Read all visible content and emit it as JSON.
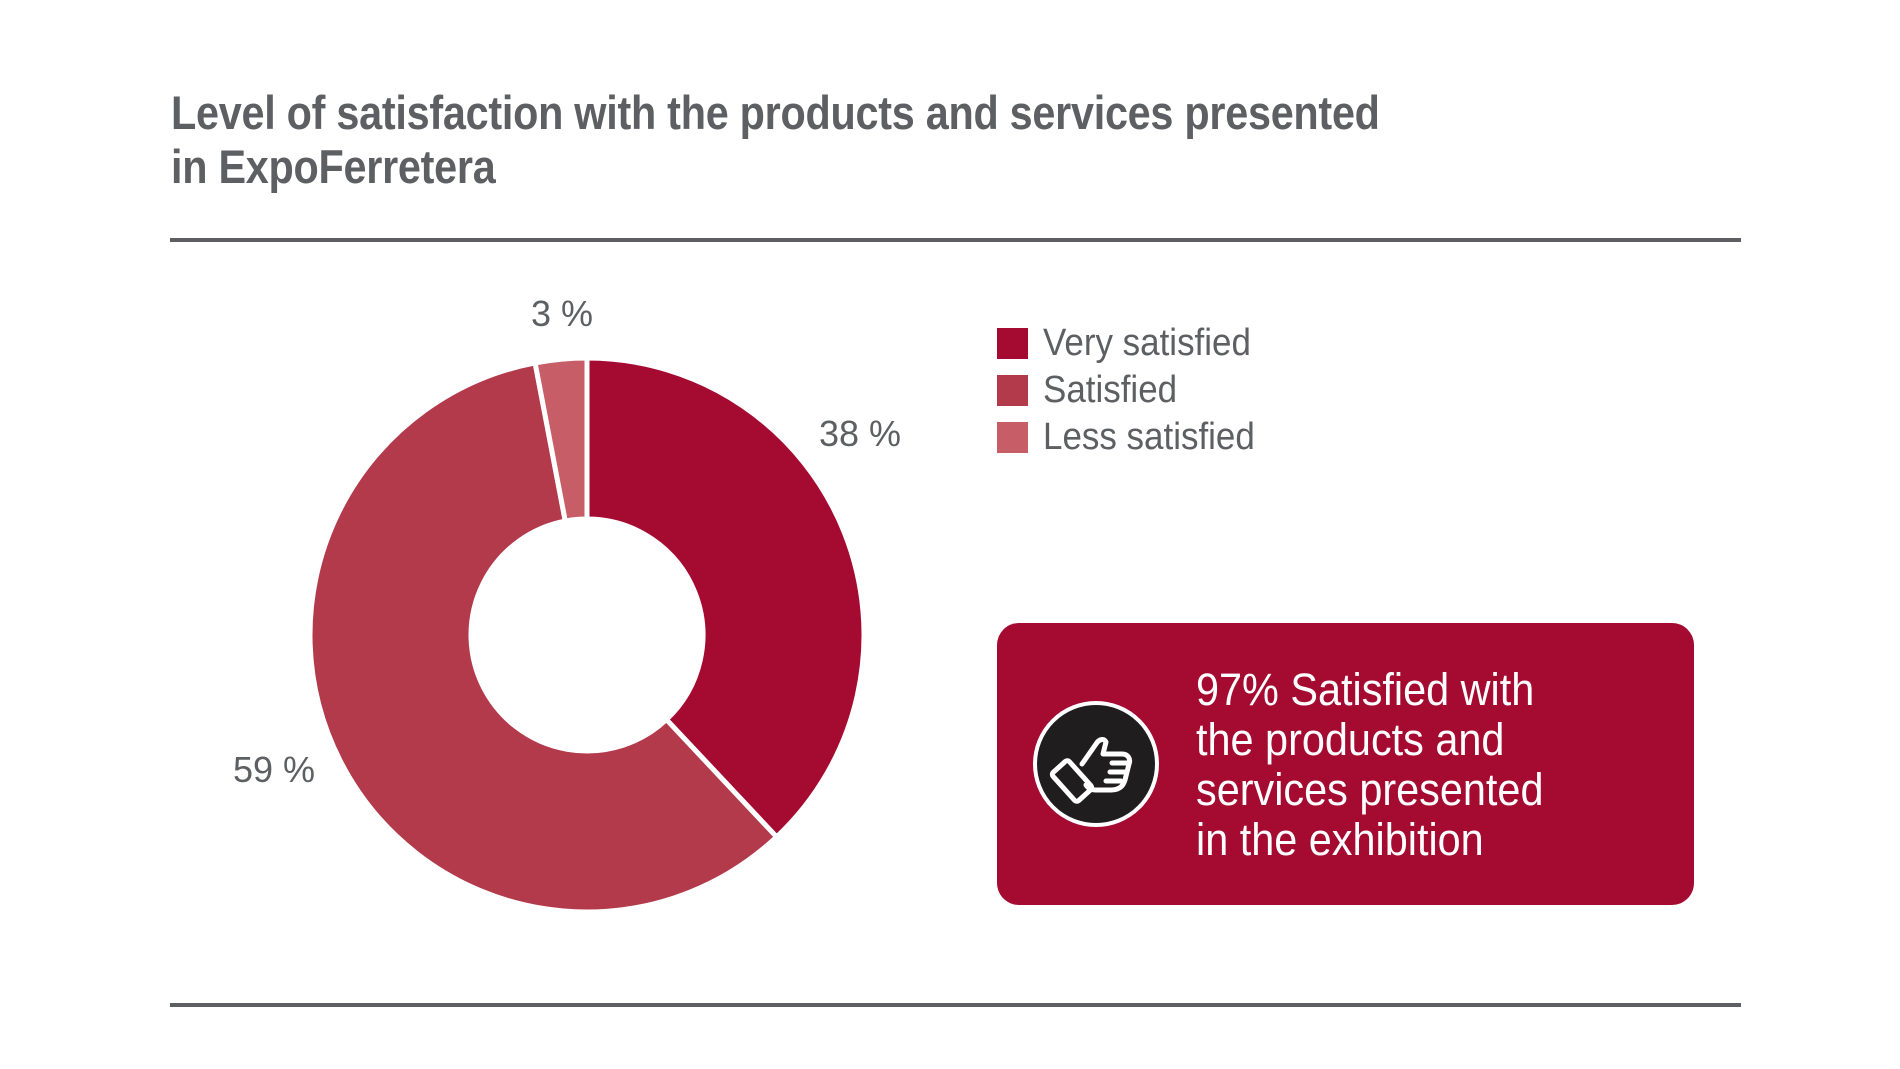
{
  "header": {
    "title_line1": "Level of satisfaction with the products and services presented",
    "title_line2": "in ExpoFerretera"
  },
  "chart_data": {
    "type": "pie",
    "variant": "donut",
    "title": "Level of satisfaction with the products and services presented in ExpoFerretera",
    "series": [
      {
        "name": "Very satisfied",
        "value": 38,
        "label": "38 %",
        "color": "#a50a30"
      },
      {
        "name": "Satisfied",
        "value": 59,
        "label": "59 %",
        "color": "#b33a4b"
      },
      {
        "name": "Less satisfied",
        "value": 3,
        "label": "3 %",
        "color": "#c75d67"
      }
    ],
    "legend_position": "right"
  },
  "legend": {
    "items": [
      {
        "label": "Very satisfied",
        "color": "#a50a30"
      },
      {
        "label": "Satisfied",
        "color": "#b33a4b"
      },
      {
        "label": "Less satisfied",
        "color": "#c75d67"
      }
    ]
  },
  "callout": {
    "icon": "thumbs-up-icon",
    "line1": "97% Satisfied with",
    "line2": "the products and",
    "line3": "services presented",
    "line4": "in the exhibition",
    "background": "#a50a30"
  }
}
